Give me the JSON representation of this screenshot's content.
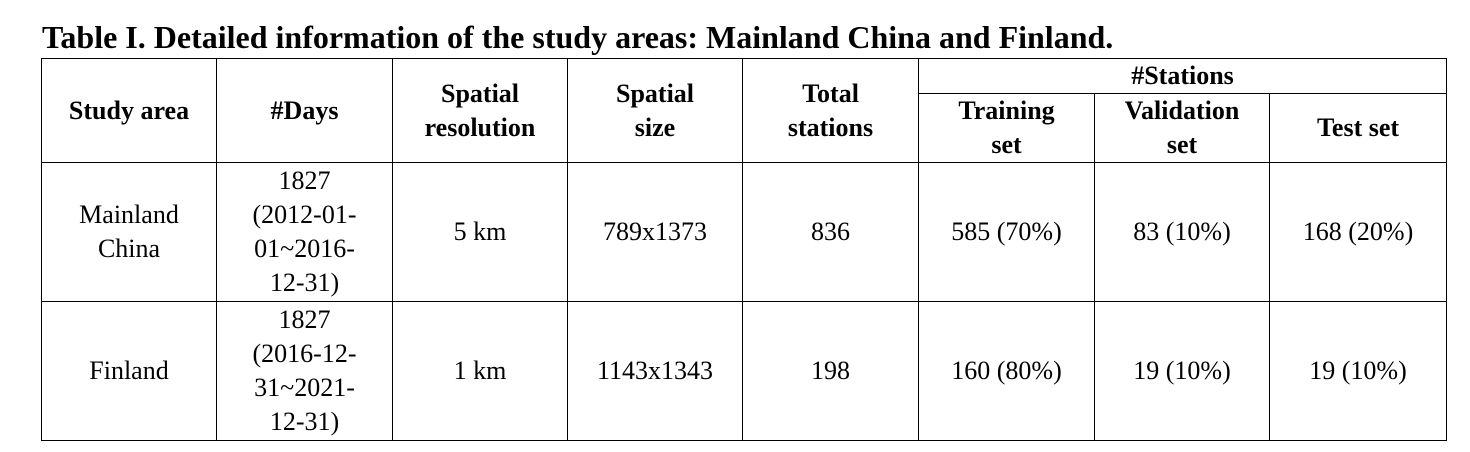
{
  "caption": "Table I. Detailed information of the study areas: Mainland China and Finland.",
  "header": {
    "study_area": "Study area",
    "days": "#Days",
    "spatial_resolution": [
      "Spatial",
      "resolution"
    ],
    "spatial_size": [
      "Spatial",
      "size"
    ],
    "total_stations": [
      "Total",
      "stations"
    ],
    "stations_group": "#Stations",
    "training_set": [
      "Training",
      "set"
    ],
    "validation_set": [
      "Validation",
      "set"
    ],
    "test_set": "Test set"
  },
  "rows": [
    {
      "study_area": [
        "Mainland",
        "China"
      ],
      "days": [
        "1827",
        "(2012-01-",
        "01~2016-",
        "12-31)"
      ],
      "spatial_resolution": "5 km",
      "spatial_size": "789x1373",
      "total_stations": "836",
      "training_set": "585 (70%)",
      "validation_set": "83 (10%)",
      "test_set": "168 (20%)"
    },
    {
      "study_area": [
        "Finland"
      ],
      "days": [
        "1827",
        "(2016-12-",
        "31~2021-",
        "12-31)"
      ],
      "spatial_resolution": "1 km",
      "spatial_size": "1143x1343",
      "total_stations": "198",
      "training_set": "160 (80%)",
      "validation_set": "19 (10%)",
      "test_set": "19 (10%)"
    }
  ]
}
